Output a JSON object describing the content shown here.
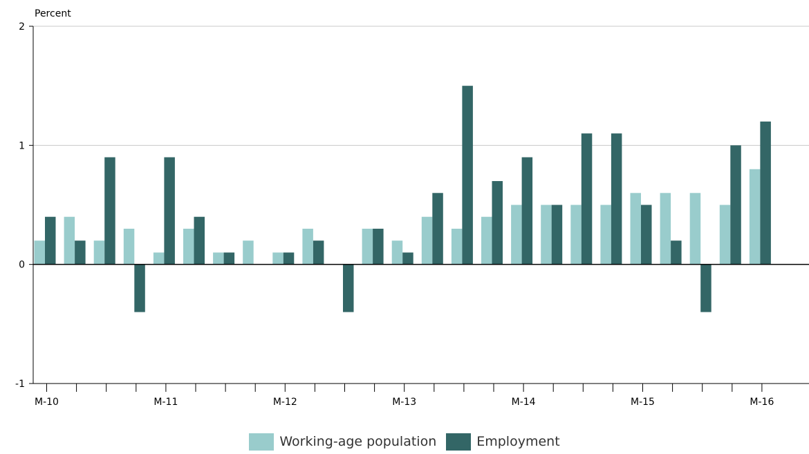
{
  "chart_data": {
    "type": "bar",
    "ylabel": "Percent",
    "ylim": [
      -1,
      2
    ],
    "yticks": [
      -1,
      0,
      1,
      2
    ],
    "grid": true,
    "legend_position": "bottom-center",
    "x_tick_labels": [
      "M-10",
      "M-11",
      "M-12",
      "M-13",
      "M-14",
      "M-15",
      "M-16"
    ],
    "series": [
      {
        "name": "Working-age population",
        "color": "#99cccc",
        "values": [
          0.2,
          0.4,
          0.2,
          0.3,
          0.1,
          0.3,
          0.1,
          0.2,
          0.1,
          0.3,
          0.0,
          0.3,
          0.2,
          0.4,
          0.3,
          0.4,
          0.5,
          0.5,
          0.5,
          0.5,
          0.6,
          0.6,
          0.6,
          0.5,
          0.8
        ]
      },
      {
        "name": "Employment",
        "color": "#336666",
        "values": [
          0.4,
          0.2,
          0.9,
          -0.4,
          0.9,
          0.4,
          0.1,
          0.0,
          0.1,
          0.2,
          -0.4,
          0.3,
          0.1,
          0.6,
          1.5,
          0.7,
          0.9,
          0.5,
          1.1,
          1.1,
          0.5,
          0.2,
          -0.4,
          1.0,
          1.2
        ]
      }
    ]
  }
}
